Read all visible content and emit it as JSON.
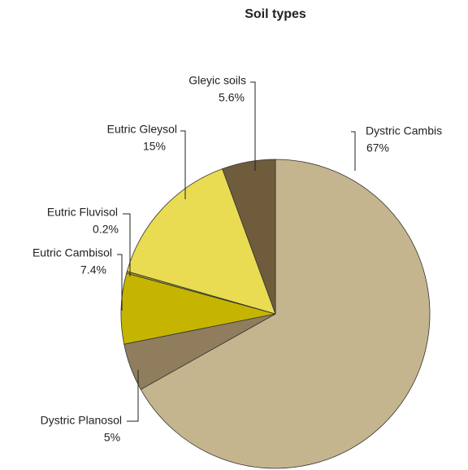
{
  "chart_data": {
    "type": "pie",
    "title": "Soil types",
    "categories": [
      "Dystric Cambis",
      "Dystric Planosol",
      "Eutric Cambisol",
      "Eutric Fluvisol",
      "Eutric Gleysol",
      "Gleyic soils"
    ],
    "values": [
      67,
      5,
      7.4,
      0.2,
      15,
      5.6
    ],
    "value_labels": [
      "67%",
      "5%",
      "7.4%",
      "0.2%",
      "15%",
      "5.6%"
    ],
    "colors": [
      "#c5b58f",
      "#8f7d5e",
      "#c5b500",
      "#a89a2a",
      "#e9dc52",
      "#6f5c3c"
    ]
  }
}
